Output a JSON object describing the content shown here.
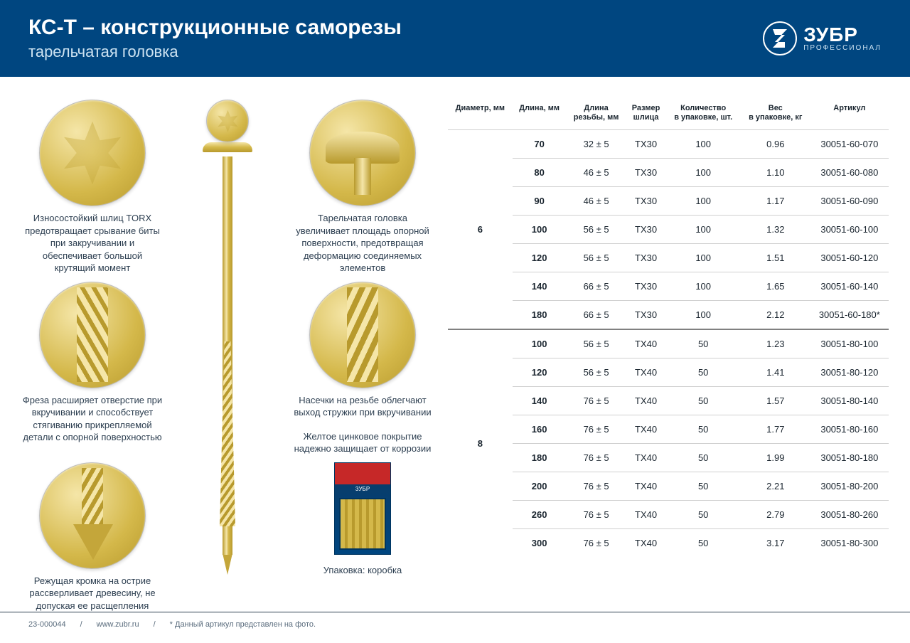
{
  "header": {
    "title": "КС-Т – конструкционные саморезы",
    "subtitle": "тарельчатая головка",
    "logo_name": "ЗУБР",
    "logo_sub": "ПРОФЕССИОНАЛ"
  },
  "colors": {
    "header_bg": "#004680",
    "header_text": "#ffffff",
    "body_text": "#1a252f",
    "gold_light": "#f5e6a8",
    "gold_mid": "#d4b84a",
    "gold_dark": "#b89a2d",
    "divider": "#d0d0d0",
    "group_divider": "#808080"
  },
  "features": {
    "torx": "Износостойкий шлиц TORX предотвращает срывание биты при закручивании и обеспечивает большой крутящий момент",
    "head": "Тарельчатая головка увеличивает площадь опорной поверхности, предотвращая деформацию соединяемых элементов",
    "mill": "Фреза расширяет отверстие при вкручивании и способствует стягиванию прикрепляемой детали с опорной поверхностью",
    "notch": "Насечки на резьбе облегчают выход стружки при вкручивании",
    "coating": "Желтое цинковое покрытие надежно защищает от коррозии",
    "tip": "Режущая кромка на острие рассверливает древесину, не допуская ее расщепления",
    "package": "Упаковка: коробка"
  },
  "table": {
    "headers": {
      "diameter": "Диаметр, мм",
      "length": "Длина, мм",
      "thread_length": "Длина\nрезьбы, мм",
      "slot": "Размер\nшлица",
      "qty": "Количество\nв упаковке, шт.",
      "weight": "Вес\nв упаковке, кг",
      "article": "Артикул"
    },
    "groups": [
      {
        "diameter": "6",
        "rows": [
          {
            "length": "70",
            "thread": "32 ± 5",
            "slot": "TX30",
            "qty": "100",
            "weight": "0.96",
            "article": "30051-60-070"
          },
          {
            "length": "80",
            "thread": "46 ± 5",
            "slot": "TX30",
            "qty": "100",
            "weight": "1.10",
            "article": "30051-60-080"
          },
          {
            "length": "90",
            "thread": "46 ± 5",
            "slot": "TX30",
            "qty": "100",
            "weight": "1.17",
            "article": "30051-60-090"
          },
          {
            "length": "100",
            "thread": "56 ± 5",
            "slot": "TX30",
            "qty": "100",
            "weight": "1.32",
            "article": "30051-60-100"
          },
          {
            "length": "120",
            "thread": "56 ± 5",
            "slot": "TX30",
            "qty": "100",
            "weight": "1.51",
            "article": "30051-60-120"
          },
          {
            "length": "140",
            "thread": "66 ± 5",
            "slot": "TX30",
            "qty": "100",
            "weight": "1.65",
            "article": "30051-60-140"
          },
          {
            "length": "180",
            "thread": "66 ± 5",
            "slot": "TX30",
            "qty": "100",
            "weight": "2.12",
            "article": "30051-60-180*"
          }
        ]
      },
      {
        "diameter": "8",
        "rows": [
          {
            "length": "100",
            "thread": "56 ± 5",
            "slot": "TX40",
            "qty": "50",
            "weight": "1.23",
            "article": "30051-80-100"
          },
          {
            "length": "120",
            "thread": "56 ± 5",
            "slot": "TX40",
            "qty": "50",
            "weight": "1.41",
            "article": "30051-80-120"
          },
          {
            "length": "140",
            "thread": "76 ± 5",
            "slot": "TX40",
            "qty": "50",
            "weight": "1.57",
            "article": "30051-80-140"
          },
          {
            "length": "160",
            "thread": "76 ± 5",
            "slot": "TX40",
            "qty": "50",
            "weight": "1.77",
            "article": "30051-80-160"
          },
          {
            "length": "180",
            "thread": "76 ± 5",
            "slot": "TX40",
            "qty": "50",
            "weight": "1.99",
            "article": "30051-80-180"
          },
          {
            "length": "200",
            "thread": "76 ± 5",
            "slot": "TX40",
            "qty": "50",
            "weight": "2.21",
            "article": "30051-80-200"
          },
          {
            "length": "260",
            "thread": "76 ± 5",
            "slot": "TX40",
            "qty": "50",
            "weight": "2.79",
            "article": "30051-80-260"
          },
          {
            "length": "300",
            "thread": "76 ± 5",
            "slot": "TX40",
            "qty": "50",
            "weight": "3.17",
            "article": "30051-80-300"
          }
        ]
      }
    ]
  },
  "footer": {
    "code": "23-000044",
    "site": "www.zubr.ru",
    "note": "* Данный артикул представлен на фото."
  }
}
